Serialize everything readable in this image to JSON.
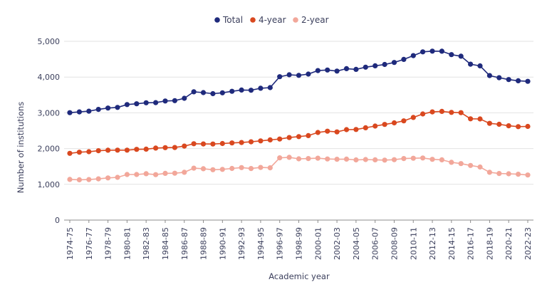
{
  "chart_data": {
    "type": "line",
    "title": "",
    "xlabel": "Academic year",
    "ylabel": "Number of institutions",
    "ylim": [
      0,
      5000
    ],
    "yticks": [
      "0",
      "1,000",
      "2,000",
      "3,000",
      "4,000",
      "5,000"
    ],
    "ytick_values": [
      0,
      1000,
      2000,
      3000,
      4000,
      5000
    ],
    "grid": "horizontal",
    "legend_position": "top-center",
    "categories": [
      "1974-75",
      "1975-76",
      "1976-77",
      "1977-78",
      "1978-79",
      "1979-80",
      "1980-81",
      "1981-82",
      "1982-83",
      "1983-84",
      "1984-85",
      "1985-86",
      "1986-87",
      "1987-88",
      "1988-89",
      "1989-90",
      "1990-91",
      "1991-92",
      "1992-93",
      "1993-94",
      "1994-95",
      "1995-96",
      "1996-97",
      "1997-98",
      "1998-99",
      "1999-00",
      "2000-01",
      "2001-02",
      "2002-03",
      "2003-04",
      "2004-05",
      "2005-06",
      "2006-07",
      "2007-08",
      "2008-09",
      "2009-10",
      "2010-11",
      "2011-12",
      "2012-13",
      "2013-14",
      "2014-15",
      "2015-16",
      "2016-17",
      "2017-18",
      "2018-19",
      "2019-20",
      "2020-21",
      "2021-22",
      "2022-23"
    ],
    "tick_labels": [
      "1974-75",
      "1976-77",
      "1978-79",
      "1980-81",
      "1982-83",
      "1984-85",
      "1986-87",
      "1988-89",
      "1990-91",
      "1992-93",
      "1994-95",
      "1996-97",
      "1998-99",
      "2000-01",
      "2002-03",
      "2004-05",
      "2006-07",
      "2008-09",
      "2010-11",
      "2012-13",
      "2014-15",
      "2016-17",
      "2018-19",
      "2020-21",
      "2022-23"
    ],
    "series": [
      {
        "name": "Total",
        "color": "#1f2a7c",
        "values": [
          3004,
          3026,
          3046,
          3095,
          3134,
          3152,
          3231,
          3253,
          3280,
          3284,
          3331,
          3340,
          3406,
          3587,
          3565,
          3535,
          3559,
          3601,
          3638,
          3632,
          3688,
          3706,
          4009,
          4064,
          4048,
          4084,
          4182,
          4197,
          4168,
          4236,
          4216,
          4276,
          4314,
          4352,
          4409,
          4495,
          4599,
          4706,
          4726,
          4724,
          4627,
          4583,
          4360,
          4313,
          4042,
          3982,
          3931,
          3896,
          3880
        ]
      },
      {
        "name": "4-year",
        "color": "#d9481f",
        "values": [
          1866,
          1898,
          1913,
          1941,
          1955,
          1957,
          1957,
          1979,
          1984,
          2013,
          2025,
          2029,
          2070,
          2135,
          2129,
          2127,
          2141,
          2157,
          2169,
          2190,
          2215,
          2244,
          2267,
          2309,
          2335,
          2363,
          2450,
          2487,
          2466,
          2530,
          2533,
          2582,
          2629,
          2675,
          2719,
          2774,
          2870,
          2968,
          3026,
          3039,
          3011,
          3004,
          2832,
          2828,
          2706,
          2679,
          2637,
          2614,
          2620
        ]
      },
      {
        "name": "2-year",
        "color": "#f2a79a",
        "values": [
          1138,
          1128,
          1133,
          1154,
          1179,
          1195,
          1274,
          1274,
          1296,
          1271,
          1306,
          1311,
          1336,
          1452,
          1436,
          1408,
          1418,
          1444,
          1469,
          1442,
          1473,
          1462,
          1742,
          1755,
          1713,
          1721,
          1732,
          1710,
          1702,
          1706,
          1683,
          1694,
          1685,
          1677,
          1690,
          1721,
          1729,
          1738,
          1700,
          1685,
          1616,
          1579,
          1528,
          1485,
          1336,
          1303,
          1294,
          1282,
          1260
        ]
      }
    ]
  }
}
